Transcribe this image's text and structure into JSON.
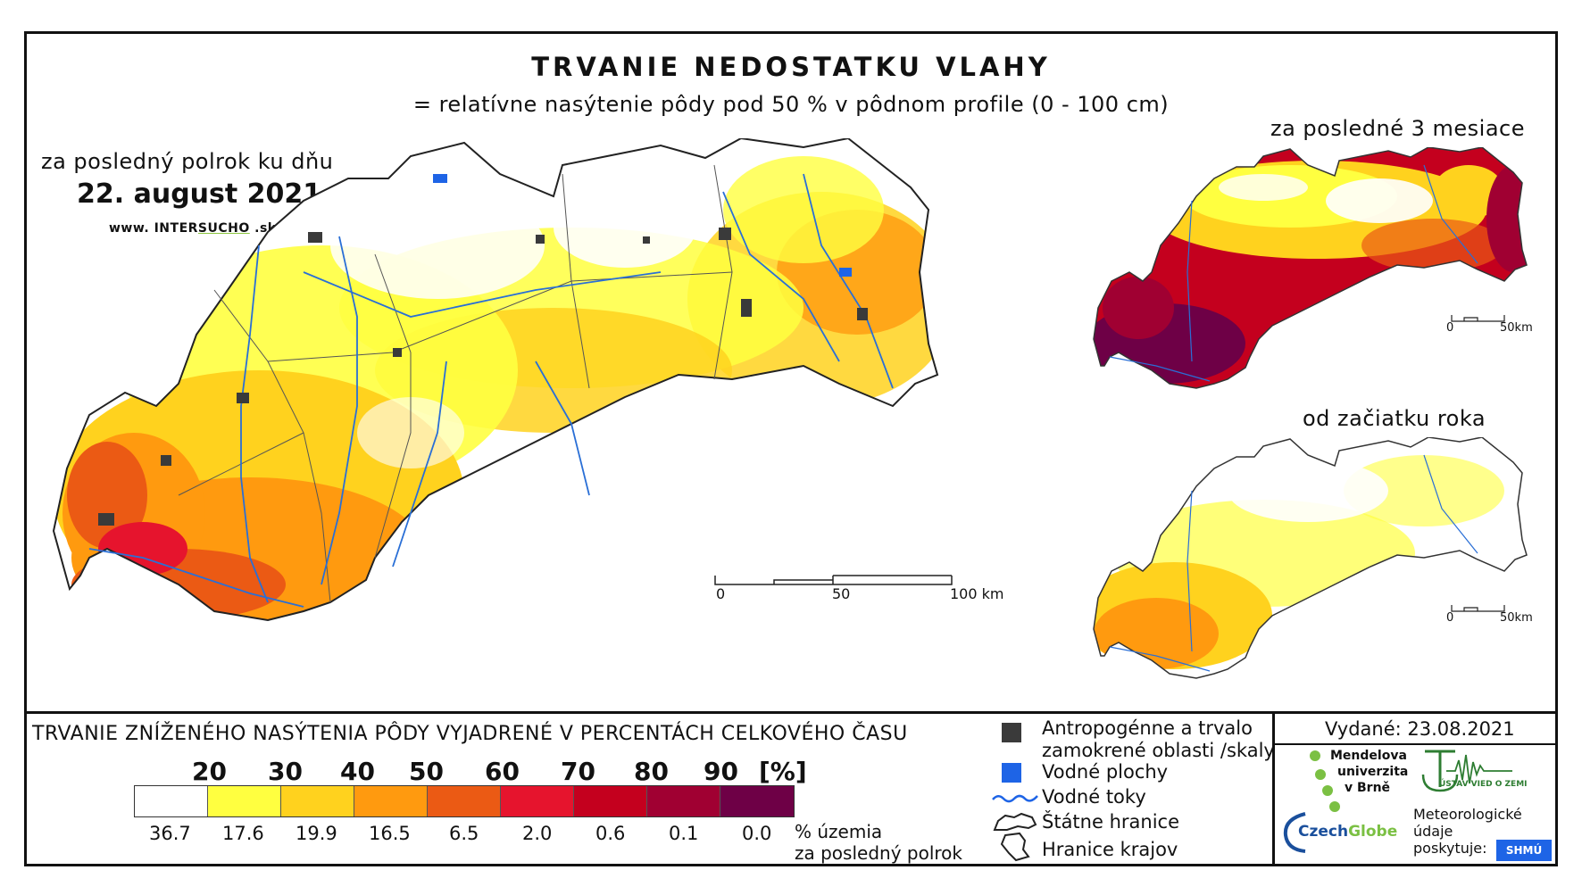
{
  "header": {
    "title": "TRVANIE NEDOSTATKU VLAHY",
    "subtitle": "= relatívne nasýtenie pôdy pod 50 % v pôdnom profile (0 - 100 cm)"
  },
  "main_map": {
    "period_label": "za posledný polrok ku dňu",
    "date": "22. august 2021",
    "website_prefix": "www. INTER",
    "website_highlight": "SUCHO",
    "website_suffix": " .sk",
    "scale": {
      "labels": [
        "0",
        "50",
        "100 km"
      ]
    }
  },
  "insets": [
    {
      "label": "za posledné 3 mesiace",
      "scale": [
        "0",
        "50km"
      ]
    },
    {
      "label": "od začiatku roka",
      "scale": [
        "0",
        "50km"
      ]
    }
  ],
  "legend": {
    "title": "TRVANIE ZNÍŽENÉHO NASÝTENIA PÔDY VYJADRENÉ V PERCENTÁCH CELKOVÉHO ČASU",
    "ticks": [
      "20",
      "30",
      "40",
      "50",
      "60",
      "70",
      "80",
      "90",
      "[%]"
    ],
    "colors": [
      "#ffffff",
      "#ffff40",
      "#ffd21e",
      "#ff9a0f",
      "#eb5a14",
      "#e6142d",
      "#c4001e",
      "#a00032",
      "#6e0046"
    ],
    "percentages": [
      "36.7",
      "17.6",
      "19.9",
      "16.5",
      "6.5",
      "2.0",
      "0.6",
      "0.1",
      "0.0"
    ],
    "percent_note_line1": "% územia",
    "percent_note_line2": "za posledný polrok"
  },
  "symbols": {
    "anthropogenic_line1": "Antropogénne a trvalo",
    "anthropogenic_line2": "zamokrené oblasti /skaly",
    "water_bodies": "Vodné plochy",
    "rivers": "Vodné toky",
    "state_border": "Štátne hranice",
    "region_border": "Hranice krajov"
  },
  "issued": "Vydané: 23.08.2021",
  "logos": {
    "mendel_line1": "Mendelova",
    "mendel_line2": "univerzita",
    "mendel_line3": "v Brně",
    "uvz": "ÚSTAV VIED O ZEMI",
    "czechglobe_a": "Czech",
    "czechglobe_b": "Globe",
    "meteo_line1": "Meteorologické",
    "meteo_line2": "údaje",
    "meteo_line3": "poskytuje:",
    "shmu": "SHMÚ"
  }
}
